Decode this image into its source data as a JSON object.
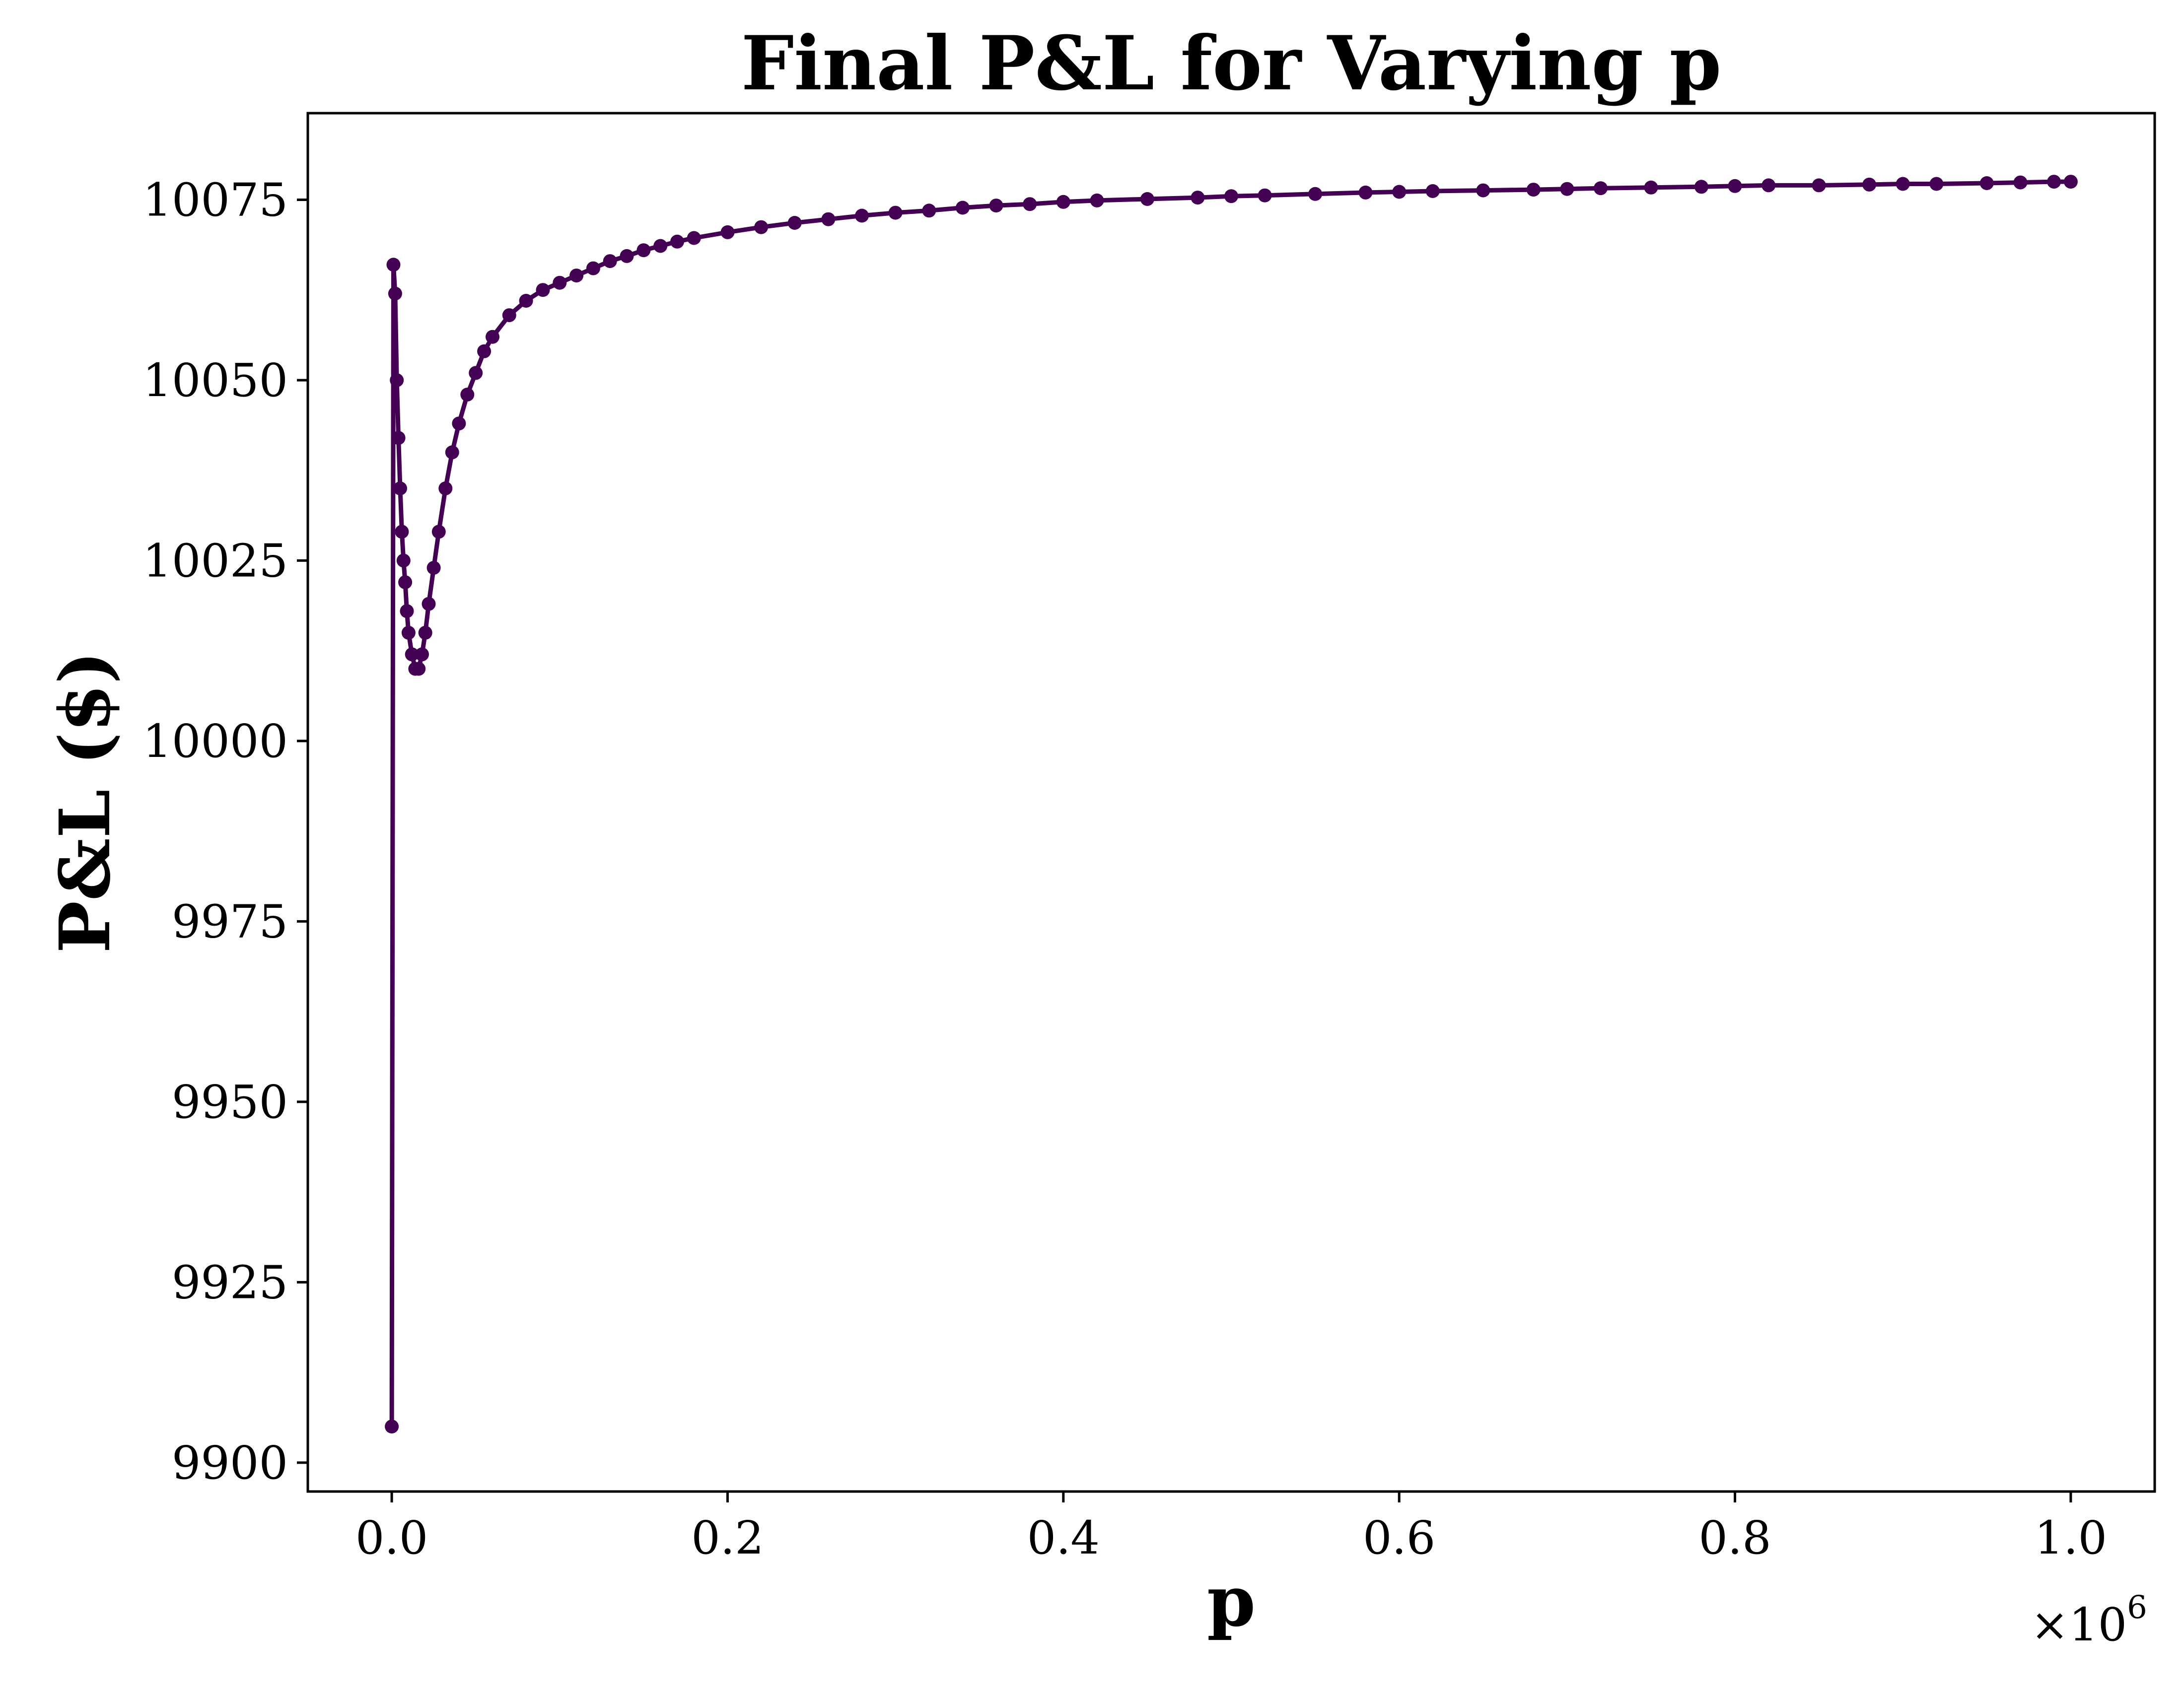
{
  "chart_data": {
    "type": "line",
    "title": "Final P&L for Varying p",
    "xlabel": "p",
    "ylabel": "P&L ($)",
    "x_multiplier": "×10",
    "x_multiplier_exponent": "6",
    "xlim": [
      -0.05,
      1.05
    ],
    "ylim": [
      9896,
      10087
    ],
    "x_scale": 1000000,
    "grid": false,
    "legend": "none",
    "color": "#440154",
    "x_ticks": [
      {
        "value": 0.0,
        "label": "0.0"
      },
      {
        "value": 0.2,
        "label": "0.2"
      },
      {
        "value": 0.4,
        "label": "0.4"
      },
      {
        "value": 0.6,
        "label": "0.6"
      },
      {
        "value": 0.8,
        "label": "0.8"
      },
      {
        "value": 1.0,
        "label": "1.0"
      }
    ],
    "y_ticks": [
      {
        "value": 9900,
        "label": "9900"
      },
      {
        "value": 9925,
        "label": "9925"
      },
      {
        "value": 9950,
        "label": "9950"
      },
      {
        "value": 9975,
        "label": "9975"
      },
      {
        "value": 10000,
        "label": "10000"
      },
      {
        "value": 10025,
        "label": "10025"
      },
      {
        "value": 10050,
        "label": "10050"
      },
      {
        "value": 10075,
        "label": "10075"
      }
    ],
    "series": [
      {
        "x": [
          0,
          1000,
          2000,
          3000,
          4000,
          5000,
          6000,
          7000,
          8000,
          9000,
          10000,
          12000,
          14000,
          16000,
          18000,
          20000,
          22000,
          25000,
          28000,
          32000,
          36000,
          40000,
          45000,
          50000,
          55000,
          60000,
          70000,
          80000,
          90000,
          100000,
          110000,
          120000,
          130000,
          140000,
          150000,
          160000,
          170000,
          180000,
          200000,
          220000,
          240000,
          260000,
          280000,
          300000,
          320000,
          340000,
          360000,
          380000,
          400000,
          420000,
          450000,
          480000,
          500000,
          520000,
          550000,
          580000,
          600000,
          620000,
          650000,
          680000,
          700000,
          720000,
          750000,
          780000,
          800000,
          820000,
          850000,
          880000,
          900000,
          920000,
          950000,
          970000,
          990000,
          1000000
        ],
        "y": [
          9905,
          10066,
          10062,
          10050,
          10042,
          10035,
          10029,
          10025,
          10022,
          10018,
          10015,
          10012,
          10010,
          10010,
          10012,
          10015,
          10019,
          10024,
          10029,
          10035,
          10040,
          10044,
          10048,
          10051,
          10054,
          10056,
          10059,
          10061,
          10062.5,
          10063.5,
          10064.5,
          10065.5,
          10066.5,
          10067.2,
          10068,
          10068.6,
          10069.2,
          10069.7,
          10070.5,
          10071.2,
          10071.8,
          10072.3,
          10072.8,
          10073.2,
          10073.5,
          10073.9,
          10074.2,
          10074.4,
          10074.7,
          10074.9,
          10075.1,
          10075.3,
          10075.5,
          10075.6,
          10075.8,
          10076,
          10076.1,
          10076.2,
          10076.3,
          10076.4,
          10076.5,
          10076.6,
          10076.7,
          10076.8,
          10076.9,
          10077,
          10077,
          10077.1,
          10077.2,
          10077.2,
          10077.3,
          10077.4,
          10077.5,
          10077.5
        ]
      }
    ]
  }
}
